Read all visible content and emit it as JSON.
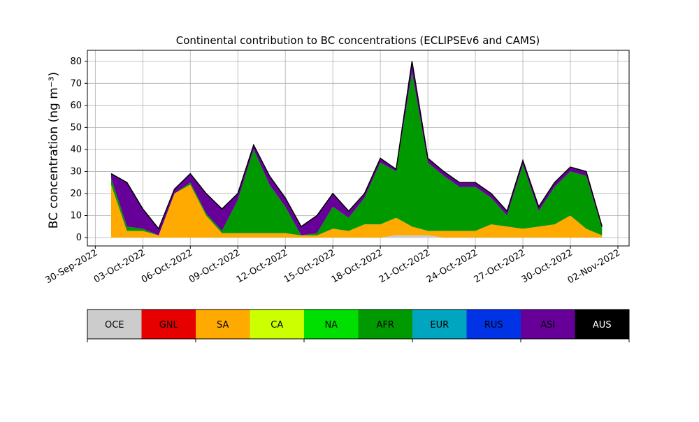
{
  "chart_data": {
    "type": "stacked_area",
    "title": "Continental contribution to BC concentrations (ECLIPSEv6 and CAMS)",
    "y_label": "BC concentration (ng m⁻³)",
    "x": [
      "2022-10-01",
      "2022-10-02",
      "2022-10-03",
      "2022-10-04",
      "2022-10-05",
      "2022-10-06",
      "2022-10-07",
      "2022-10-08",
      "2022-10-09",
      "2022-10-10",
      "2022-10-11",
      "2022-10-12",
      "2022-10-13",
      "2022-10-14",
      "2022-10-15",
      "2022-10-16",
      "2022-10-17",
      "2022-10-18",
      "2022-10-19",
      "2022-10-20",
      "2022-10-21",
      "2022-10-22",
      "2022-10-23",
      "2022-10-24",
      "2022-10-25",
      "2022-10-26",
      "2022-10-27",
      "2022-10-28",
      "2022-10-29",
      "2022-10-30",
      "2022-10-31",
      "2022-11-01"
    ],
    "series": [
      {
        "name": "OCE",
        "color": "#cccccc",
        "values": [
          0,
          0,
          0,
          0,
          0,
          0,
          0,
          0,
          0,
          0,
          0,
          0,
          0,
          0,
          0,
          0,
          0,
          0,
          1,
          1,
          1,
          0,
          0,
          0,
          0,
          0,
          0,
          0,
          0,
          0,
          0,
          0
        ]
      },
      {
        "name": "GNL",
        "color": "#e60000",
        "values": [
          0,
          0,
          0,
          0,
          0,
          0,
          0,
          0,
          0,
          0,
          0,
          0,
          0,
          0,
          0,
          0,
          0,
          0,
          0,
          0,
          0,
          0,
          0,
          0,
          0,
          0,
          0,
          0,
          0,
          0,
          0,
          0
        ]
      },
      {
        "name": "SA",
        "color": "#ffaa00",
        "values": [
          24,
          3,
          3,
          1,
          20,
          24,
          10,
          2,
          2,
          2,
          2,
          2,
          1,
          1,
          4,
          3,
          6,
          6,
          8,
          4,
          2,
          3,
          3,
          3,
          6,
          5,
          4,
          5,
          6,
          10,
          4,
          1
        ]
      },
      {
        "name": "CA",
        "color": "#ccff00",
        "values": [
          0,
          0,
          0,
          0,
          0,
          0,
          0,
          0,
          0,
          0,
          0,
          0,
          0,
          0,
          0,
          0,
          0,
          0,
          0,
          0,
          0,
          0,
          0,
          0,
          0,
          0,
          0,
          0,
          0,
          0,
          0,
          0
        ]
      },
      {
        "name": "NA",
        "color": "#00e000",
        "values": [
          0,
          0,
          0,
          0,
          0,
          0,
          0,
          0,
          0,
          0,
          0,
          0,
          0,
          0,
          0,
          0,
          0,
          0,
          0,
          0,
          0,
          0,
          0,
          0,
          0,
          0,
          0,
          0,
          0,
          0,
          0,
          0
        ]
      },
      {
        "name": "AFR",
        "color": "#009900",
        "values": [
          3,
          2,
          1,
          0,
          0,
          1,
          1,
          1,
          15,
          38,
          22,
          12,
          0,
          1,
          10,
          6,
          12,
          28,
          21,
          70,
          31,
          25,
          20,
          20,
          12,
          5,
          29,
          7,
          17,
          20,
          24,
          3
        ]
      },
      {
        "name": "EUR",
        "color": "#00a6bf",
        "values": [
          0,
          0,
          0,
          0,
          0,
          0,
          0,
          0,
          0,
          0,
          0,
          0,
          0,
          0,
          0,
          0,
          0,
          0,
          0,
          0,
          0,
          0,
          0,
          0,
          0,
          0,
          0,
          0,
          0,
          0,
          0,
          0
        ]
      },
      {
        "name": "RUS",
        "color": "#0033e6",
        "values": [
          0,
          0,
          0,
          0,
          0,
          0,
          0,
          0,
          0,
          0,
          0,
          0,
          0,
          0,
          0,
          0,
          0,
          0,
          0,
          0,
          0,
          0,
          0,
          0,
          0,
          0,
          0,
          0,
          0,
          0,
          0,
          0
        ]
      },
      {
        "name": "ASI",
        "color": "#660099",
        "values": [
          2,
          20,
          9,
          3,
          2,
          4,
          9,
          10,
          3,
          2,
          4,
          4,
          4,
          8,
          6,
          3,
          2,
          2,
          1,
          5,
          2,
          2,
          2,
          2,
          2,
          2,
          2,
          2,
          2,
          2,
          2,
          1
        ]
      },
      {
        "name": "AUS",
        "color": "#000000",
        "values": [
          0,
          0,
          0,
          0,
          0,
          0,
          0,
          0,
          0,
          0,
          0,
          0,
          0,
          0,
          0,
          0,
          0,
          0,
          0,
          0,
          0,
          0,
          0,
          0,
          0,
          0,
          0,
          0,
          0,
          0,
          0,
          0
        ]
      }
    ],
    "xlim": [
      "2022-09-29T12:00",
      "2022-11-02T17:00"
    ],
    "xticks": [
      {
        "value": "2022-09-30",
        "label": "30-Sep-2022"
      },
      {
        "value": "2022-10-03",
        "label": "03-Oct-2022"
      },
      {
        "value": "2022-10-06",
        "label": "06-Oct-2022"
      },
      {
        "value": "2022-10-09",
        "label": "09-Oct-2022"
      },
      {
        "value": "2022-10-12",
        "label": "12-Oct-2022"
      },
      {
        "value": "2022-10-15",
        "label": "15-Oct-2022"
      },
      {
        "value": "2022-10-18",
        "label": "18-Oct-2022"
      },
      {
        "value": "2022-10-21",
        "label": "21-Oct-2022"
      },
      {
        "value": "2022-10-24",
        "label": "24-Oct-2022"
      },
      {
        "value": "2022-10-27",
        "label": "27-Oct-2022"
      },
      {
        "value": "2022-10-30",
        "label": "30-Oct-2022"
      },
      {
        "value": "2022-11-02",
        "label": "02-Nov-2022"
      }
    ],
    "ylim": [
      -3.8,
      85
    ],
    "yticks": [
      0,
      10,
      20,
      30,
      40,
      50,
      60,
      70,
      80
    ],
    "grid": true
  }
}
